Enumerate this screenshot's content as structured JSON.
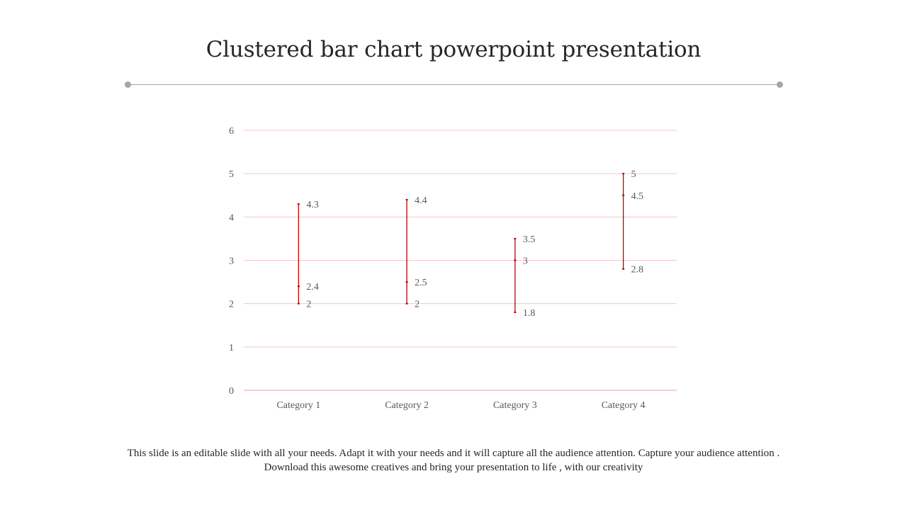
{
  "slide": {
    "title": "Clustered bar chart powerpoint presentation",
    "footer_line1": "This slide is an editable slide with all your needs. Adapt it with your needs and it will capture all the audience attention. Capture your audience attention .",
    "footer_line2": "Download this awesome creatives and bring your presentation to life , with our creativity"
  },
  "colors": {
    "gridline": "#f0c8cc",
    "axis": "#e8a0a8",
    "series": "#c00000",
    "divider": "#a6a6a6",
    "text": "#595959"
  },
  "chart_data": {
    "type": "stock-high-low",
    "categories": [
      "Category 1",
      "Category 2",
      "Category 3",
      "Category 4"
    ],
    "series": [
      {
        "values": [
          4.3,
          4.4,
          3.5,
          5
        ]
      },
      {
        "values": [
          2.4,
          2.5,
          3,
          4.5
        ]
      },
      {
        "values": [
          2,
          2,
          1.8,
          2.8
        ]
      }
    ],
    "yticks": [
      0,
      1,
      2,
      3,
      4,
      5,
      6
    ],
    "ylim": [
      0,
      6
    ],
    "grid": true,
    "legend": "none"
  }
}
